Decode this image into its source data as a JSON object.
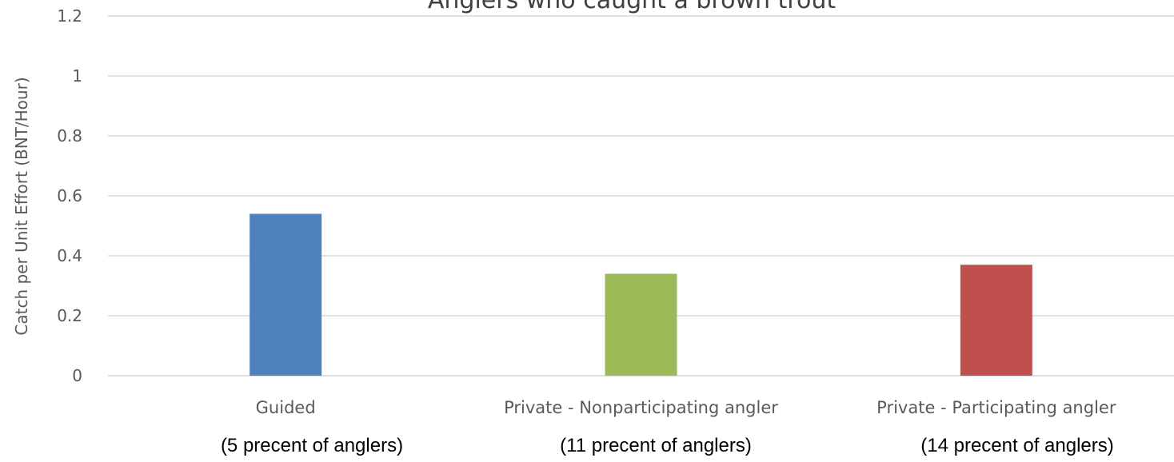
{
  "chart_data": {
    "type": "bar",
    "title": "Anglers who caught a brown trout",
    "ylabel": "Catch per Unit Effort (BNT/Hour)",
    "xlabel": "",
    "ylim": [
      0,
      1.2
    ],
    "yticks": [
      "0",
      "0.2",
      "0.4",
      "0.6",
      "0.8",
      "1",
      "1.2"
    ],
    "grid": true,
    "categories": [
      "Guided",
      "Private - Nonparticipating angler",
      "Private - Participating angler"
    ],
    "subtitles": [
      "(5 precent of anglers)",
      "(11 precent of  anglers)",
      "(14 precent of anglers)"
    ],
    "values": [
      0.54,
      0.34,
      0.37
    ],
    "colors": [
      "#4f81bd",
      "#9bbb59",
      "#c0504d"
    ]
  }
}
